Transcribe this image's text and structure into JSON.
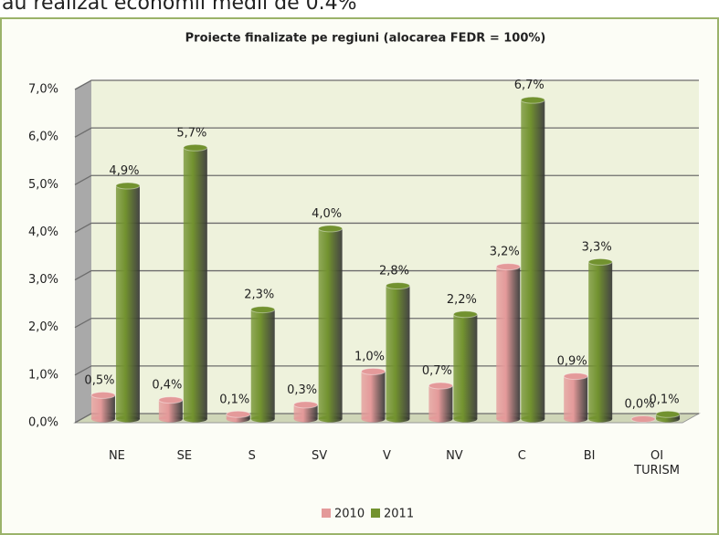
{
  "header_text": "au realizat economii medii de 0.4%",
  "chart_data": {
    "type": "bar3d",
    "title": "Proiecte finalizate pe regiuni (alocarea FEDR = 100%)",
    "categories": [
      "NE",
      "SE",
      "S",
      "SV",
      "V",
      "NV",
      "C",
      "BI",
      "OI TURISM"
    ],
    "series": [
      {
        "name": "2010",
        "color": "#e49a9a",
        "values": [
          0.5,
          0.4,
          0.1,
          0.3,
          1.0,
          0.7,
          3.2,
          0.9,
          0.0
        ],
        "value_labels": [
          "0,5%",
          "0,4%",
          "0,1%",
          "0,3%",
          "1,0%",
          "0,7%",
          "3,2%",
          "0,9%",
          "0,0%"
        ]
      },
      {
        "name": "2011",
        "color": "#72922f",
        "values": [
          4.9,
          5.7,
          2.3,
          4.0,
          2.8,
          2.2,
          6.7,
          3.3,
          0.1
        ],
        "value_labels": [
          "4,9%",
          "5,7%",
          "2,3%",
          "4,0%",
          "2,8%",
          "2,2%",
          "6,7%",
          "3,3%",
          "0,1%"
        ]
      }
    ],
    "ylim": [
      0,
      7
    ],
    "yticks": [
      {
        "value": 0,
        "label": "0,0%"
      },
      {
        "value": 1,
        "label": "1,0%"
      },
      {
        "value": 2,
        "label": "2,0%"
      },
      {
        "value": 3,
        "label": "3,0%"
      },
      {
        "value": 4,
        "label": "4,0%"
      },
      {
        "value": 5,
        "label": "5,0%"
      },
      {
        "value": 6,
        "label": "6,0%"
      },
      {
        "value": 7,
        "label": "7,0%"
      }
    ],
    "grid": true,
    "legend": "bottom"
  }
}
